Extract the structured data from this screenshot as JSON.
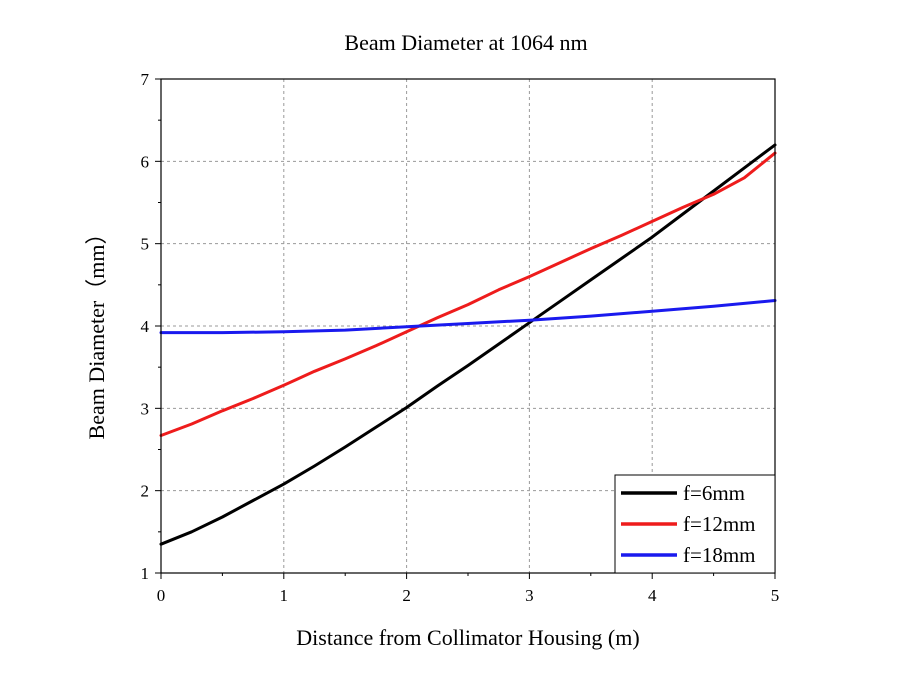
{
  "chart_data": {
    "type": "line",
    "title": "Beam Diameter at 1064 nm",
    "xlabel": "Distance from Collimator Housing (m)",
    "ylabel": "Beam Diameter（mm）",
    "xlim": [
      0,
      5
    ],
    "ylim": [
      1,
      7
    ],
    "xticks": [
      "0",
      "1",
      "2",
      "3",
      "4",
      "5"
    ],
    "yticks": [
      "1",
      "2",
      "3",
      "4",
      "5",
      "6",
      "7"
    ],
    "grid": true,
    "legend_position": "bottom-right",
    "series": [
      {
        "name": "f=6mm",
        "color": "#000000",
        "x": [
          0,
          0.25,
          0.5,
          0.75,
          1,
          1.25,
          1.5,
          1.75,
          2,
          2.25,
          2.5,
          2.75,
          3,
          3.25,
          3.5,
          3.75,
          4,
          4.25,
          4.5,
          4.75,
          5
        ],
        "y": [
          1.35,
          1.5,
          1.68,
          1.88,
          2.08,
          2.3,
          2.53,
          2.77,
          3.01,
          3.27,
          3.52,
          3.78,
          4.04,
          4.3,
          4.56,
          4.82,
          5.08,
          5.36,
          5.64,
          5.92,
          6.2
        ]
      },
      {
        "name": "f=12mm",
        "color": "#ee1c1c",
        "x": [
          0,
          0.25,
          0.5,
          0.75,
          1,
          1.25,
          1.5,
          1.75,
          2,
          2.25,
          2.5,
          2.75,
          3,
          3.25,
          3.5,
          3.75,
          4,
          4.25,
          4.5,
          4.75,
          5
        ],
        "y": [
          2.67,
          2.81,
          2.97,
          3.12,
          3.28,
          3.45,
          3.6,
          3.76,
          3.93,
          4.1,
          4.26,
          4.44,
          4.6,
          4.77,
          4.94,
          5.1,
          5.27,
          5.44,
          5.6,
          5.8,
          6.1
        ]
      },
      {
        "name": "f=18mm",
        "color": "#1a1aee",
        "x": [
          0,
          0.5,
          1,
          1.5,
          2,
          2.5,
          3,
          3.5,
          4,
          4.5,
          5
        ],
        "y": [
          3.92,
          3.92,
          3.93,
          3.95,
          3.99,
          4.03,
          4.07,
          4.12,
          4.18,
          4.24,
          4.31
        ]
      }
    ]
  }
}
